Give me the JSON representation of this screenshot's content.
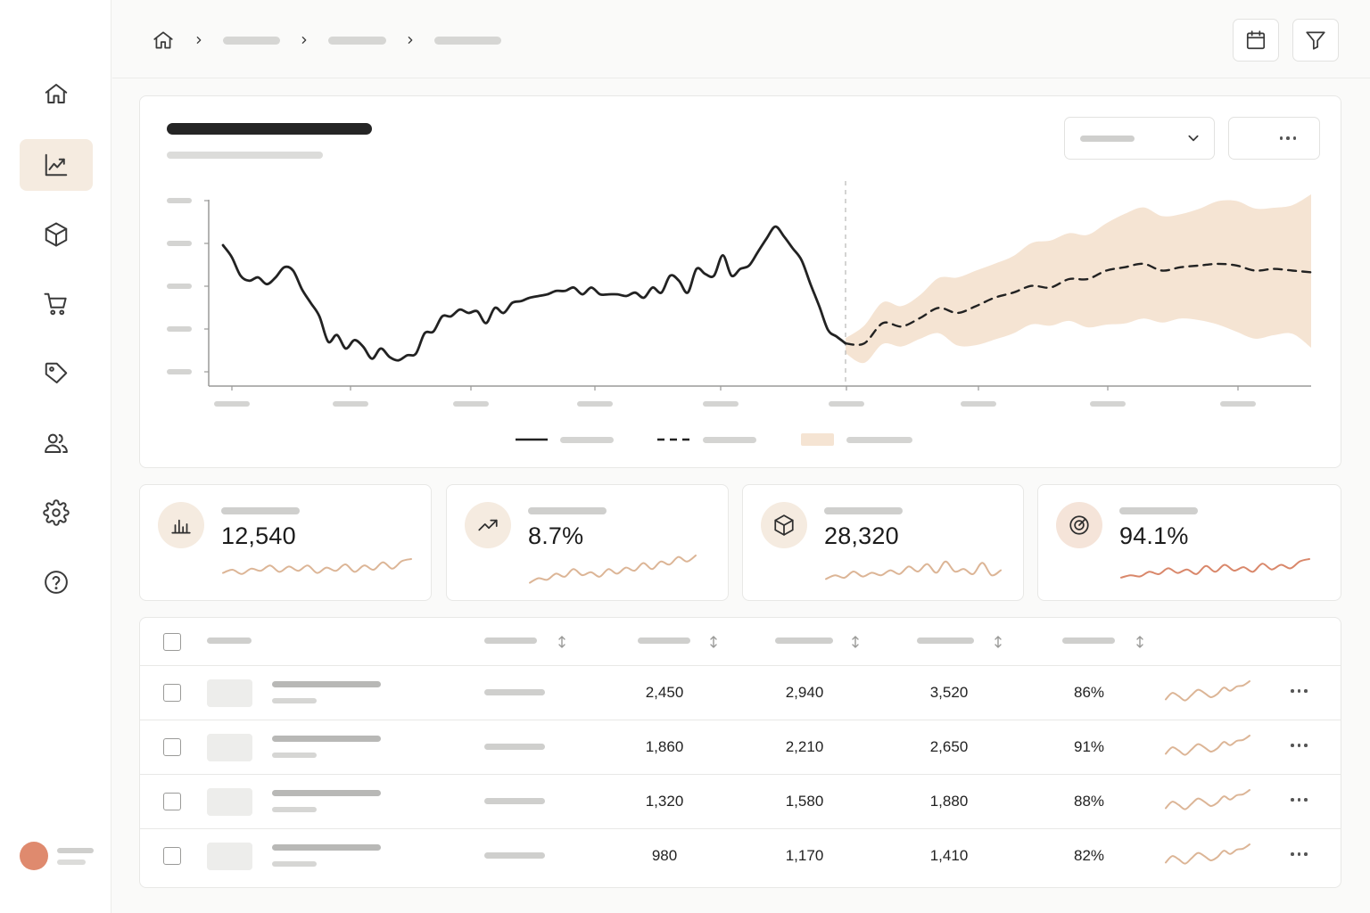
{
  "colors": {
    "accent_soft": "#f5ebe0",
    "forecast_band": "#f5e4d3",
    "spark_tan": "#dcb596",
    "spark_coral": "#d9876a",
    "avatar": "#df8a6e",
    "line_dark": "#222222"
  },
  "sidebar": {
    "items": [
      {
        "icon": "home-icon",
        "active": false
      },
      {
        "icon": "trend-chart-icon",
        "active": true
      },
      {
        "icon": "cube-icon",
        "active": false
      },
      {
        "icon": "cart-icon",
        "active": false
      },
      {
        "icon": "tag-icon",
        "active": false
      },
      {
        "icon": "users-icon",
        "active": false
      },
      {
        "icon": "gear-icon",
        "active": false
      },
      {
        "icon": "help-icon",
        "active": false
      }
    ]
  },
  "topbar": {
    "breadcrumb_icon": "home-icon",
    "buttons": [
      "calendar-icon",
      "filter-icon"
    ]
  },
  "chart_data": {
    "type": "line",
    "series": [
      {
        "style": "solid",
        "values": [
          0.7,
          0.63,
          0.52,
          0.49,
          0.51,
          0.47,
          0.51,
          0.57,
          0.55,
          0.44,
          0.36,
          0.28,
          0.13,
          0.17,
          0.09,
          0.14,
          0.1,
          0.03,
          0.09,
          0.04,
          0.02,
          0.05,
          0.06,
          0.18,
          0.19,
          0.28,
          0.28,
          0.32,
          0.3,
          0.31,
          0.24,
          0.33,
          0.3,
          0.36,
          0.37,
          0.39,
          0.4,
          0.41,
          0.43,
          0.43,
          0.45,
          0.41,
          0.45,
          0.41,
          0.41,
          0.41,
          0.4,
          0.42,
          0.39,
          0.45,
          0.42,
          0.52,
          0.49,
          0.42,
          0.56,
          0.53,
          0.52,
          0.64,
          0.52,
          0.56,
          0.58,
          0.66,
          0.74,
          0.81,
          0.75,
          0.68,
          0.61,
          0.47,
          0.34,
          0.2,
          0.16,
          0.12
        ]
      },
      {
        "style": "dashed",
        "values": [
          0.12,
          0.12,
          0.24,
          0.22,
          0.27,
          0.33,
          0.3,
          0.34,
          0.39,
          0.42,
          0.46,
          0.45,
          0.5,
          0.5,
          0.55,
          0.57,
          0.59,
          0.55,
          0.57,
          0.58,
          0.59,
          0.58,
          0.55,
          0.56,
          0.55,
          0.54
        ]
      },
      {
        "style": "band"
      }
    ],
    "forecast_start_index": 71,
    "y_ticks": 5,
    "x_ticks": 9,
    "grid": false,
    "legend": "bottom-center"
  },
  "kpis": [
    {
      "icon": "bar-chart-icon",
      "value": "12,540",
      "spark_color": "#dcb596",
      "spark": [
        0.35,
        0.5,
        0.3,
        0.55,
        0.45,
        0.7,
        0.4,
        0.65,
        0.45,
        0.7,
        0.35,
        0.6,
        0.45,
        0.75,
        0.4,
        0.7,
        0.5,
        0.85,
        0.55,
        0.9,
        1.0
      ]
    },
    {
      "icon": "trend-up-icon",
      "value": "8.7%",
      "spark_color": "#dcb596",
      "spark": [
        0.1,
        0.25,
        0.2,
        0.4,
        0.3,
        0.55,
        0.35,
        0.45,
        0.3,
        0.55,
        0.4,
        0.6,
        0.5,
        0.75,
        0.55,
        0.8,
        0.7,
        0.95,
        0.8,
        1.0
      ]
    },
    {
      "icon": "cube-icon",
      "value": "28,320",
      "spark_color": "#dcb596",
      "spark": [
        0.2,
        0.35,
        0.25,
        0.5,
        0.3,
        0.45,
        0.35,
        0.55,
        0.4,
        0.7,
        0.5,
        0.8,
        0.45,
        0.9,
        0.5,
        0.6,
        0.4,
        0.85,
        0.35,
        0.55
      ]
    },
    {
      "icon": "target-icon",
      "value": "94.1%",
      "spark_color": "#d9876a",
      "spark": [
        0.2,
        0.3,
        0.25,
        0.45,
        0.35,
        0.6,
        0.4,
        0.55,
        0.35,
        0.7,
        0.45,
        0.75,
        0.5,
        0.65,
        0.45,
        0.8,
        0.55,
        0.75,
        0.6,
        0.9,
        1.0
      ]
    }
  ],
  "table": {
    "rows": [
      {
        "c1": "2,450",
        "c2": "2,940",
        "c3": "3,520",
        "c4": "86%"
      },
      {
        "c1": "1,860",
        "c2": "2,210",
        "c3": "2,650",
        "c4": "91%"
      },
      {
        "c1": "1,320",
        "c2": "1,580",
        "c3": "1,880",
        "c4": "88%"
      },
      {
        "c1": "980",
        "c2": "1,170",
        "c3": "1,410",
        "c4": "82%"
      }
    ],
    "row_spark": [
      0.15,
      0.45,
      0.3,
      0.1,
      0.35,
      0.6,
      0.45,
      0.25,
      0.4,
      0.7,
      0.55,
      0.75,
      0.8,
      1.0
    ]
  }
}
